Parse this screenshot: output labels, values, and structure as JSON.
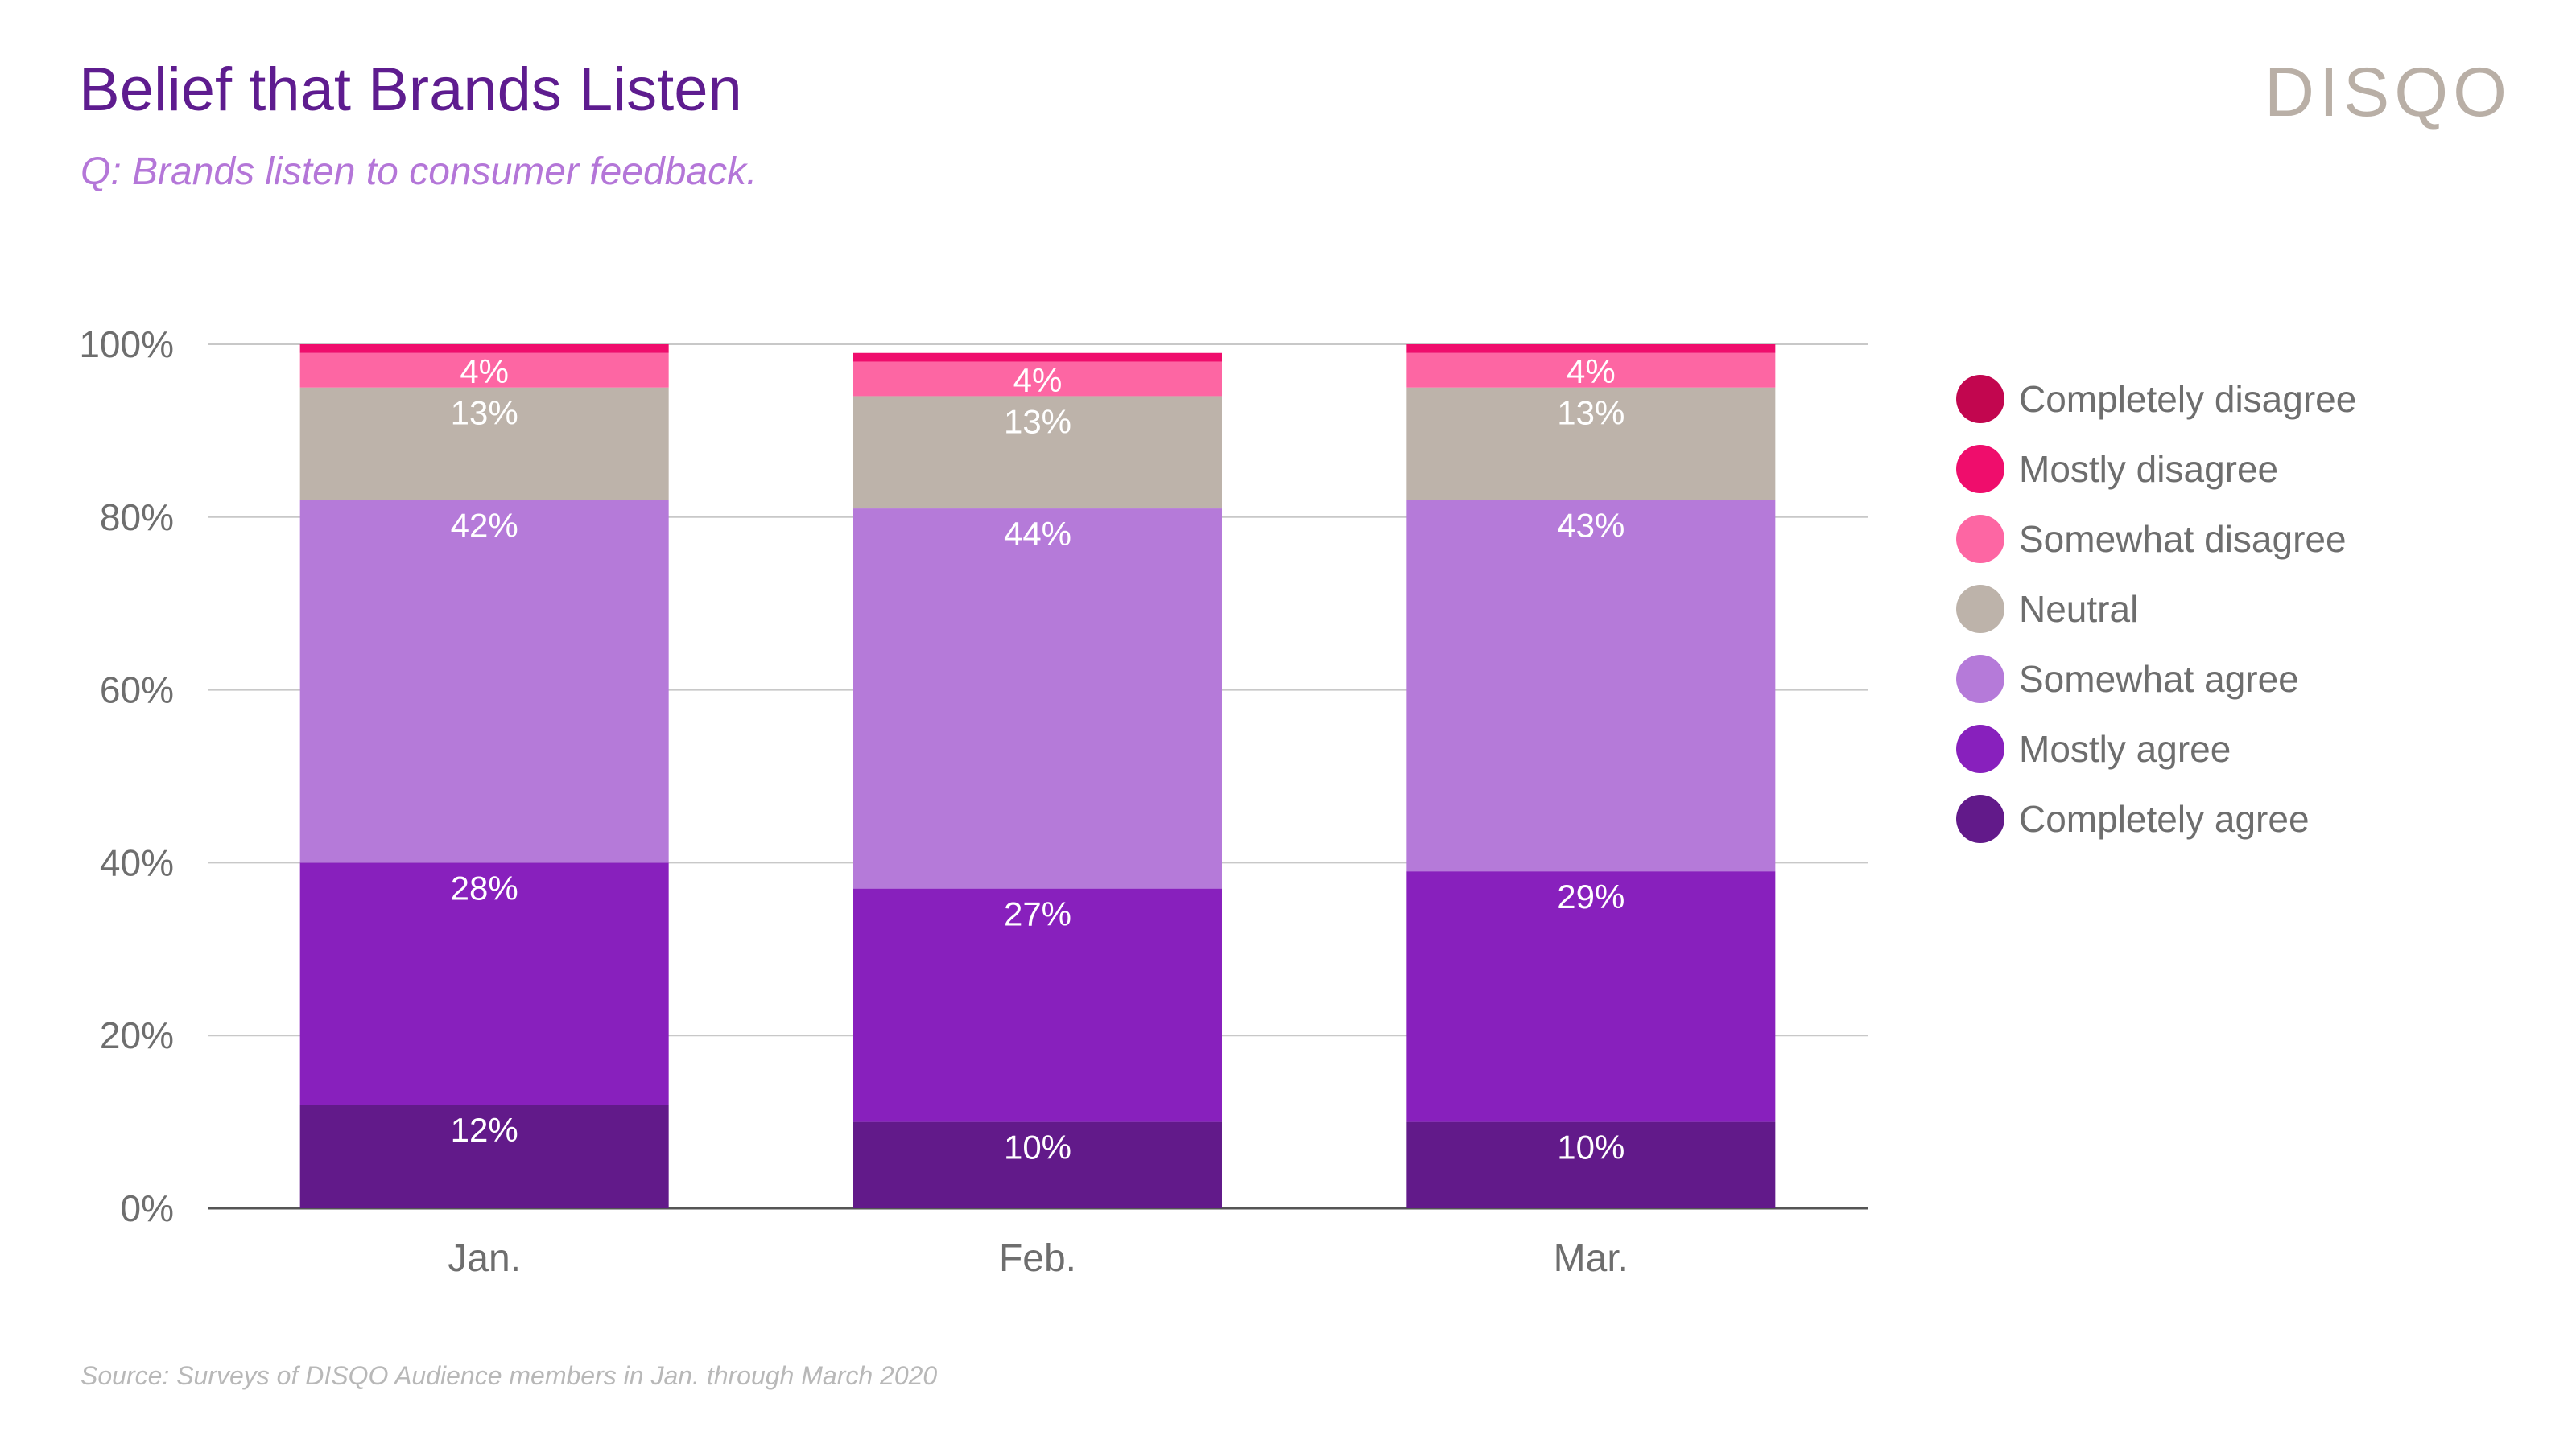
{
  "header": {
    "title": "Belief that Brands Listen",
    "subtitle": "Q: Brands listen to consumer feedback.",
    "logo_text": "DISQO"
  },
  "footer": {
    "source": "Source: Surveys of DISQO Audience members in Jan. through March 2020"
  },
  "chart_data": {
    "type": "bar",
    "stacked": true,
    "categories": [
      "Jan.",
      "Feb.",
      "Mar."
    ],
    "ylim": [
      0,
      100
    ],
    "yticks": [
      0,
      20,
      40,
      60,
      80,
      100
    ],
    "ytick_labels": [
      "0%",
      "20%",
      "40%",
      "60%",
      "80%",
      "100%"
    ],
    "grid": true,
    "legend_position": "right",
    "series": [
      {
        "name": "Completely agree",
        "color": "#621a8a",
        "values": [
          12,
          10,
          10
        ],
        "labels": [
          "12%",
          "10%",
          "10%"
        ]
      },
      {
        "name": "Mostly agree",
        "color": "#8820bd",
        "values": [
          28,
          27,
          29
        ],
        "labels": [
          "28%",
          "27%",
          "29%"
        ]
      },
      {
        "name": "Somewhat agree",
        "color": "#b57ad9",
        "values": [
          42,
          44,
          43
        ],
        "labels": [
          "42%",
          "44%",
          "43%"
        ]
      },
      {
        "name": "Neutral",
        "color": "#bdb3aa",
        "values": [
          13,
          13,
          13
        ],
        "labels": [
          "13%",
          "13%",
          "13%"
        ]
      },
      {
        "name": "Somewhat disagree",
        "color": "#fd66a3",
        "values": [
          4,
          4,
          4
        ],
        "labels": [
          "4%",
          "4%",
          "4%"
        ]
      },
      {
        "name": "Mostly disagree",
        "color": "#ef0d6c",
        "values": [
          1,
          1,
          1
        ],
        "labels": [
          "",
          "",
          ""
        ]
      },
      {
        "name": "Completely disagree",
        "color": "#c2064f",
        "values": [
          0,
          0,
          0
        ],
        "labels": [
          "",
          "",
          ""
        ]
      }
    ]
  }
}
